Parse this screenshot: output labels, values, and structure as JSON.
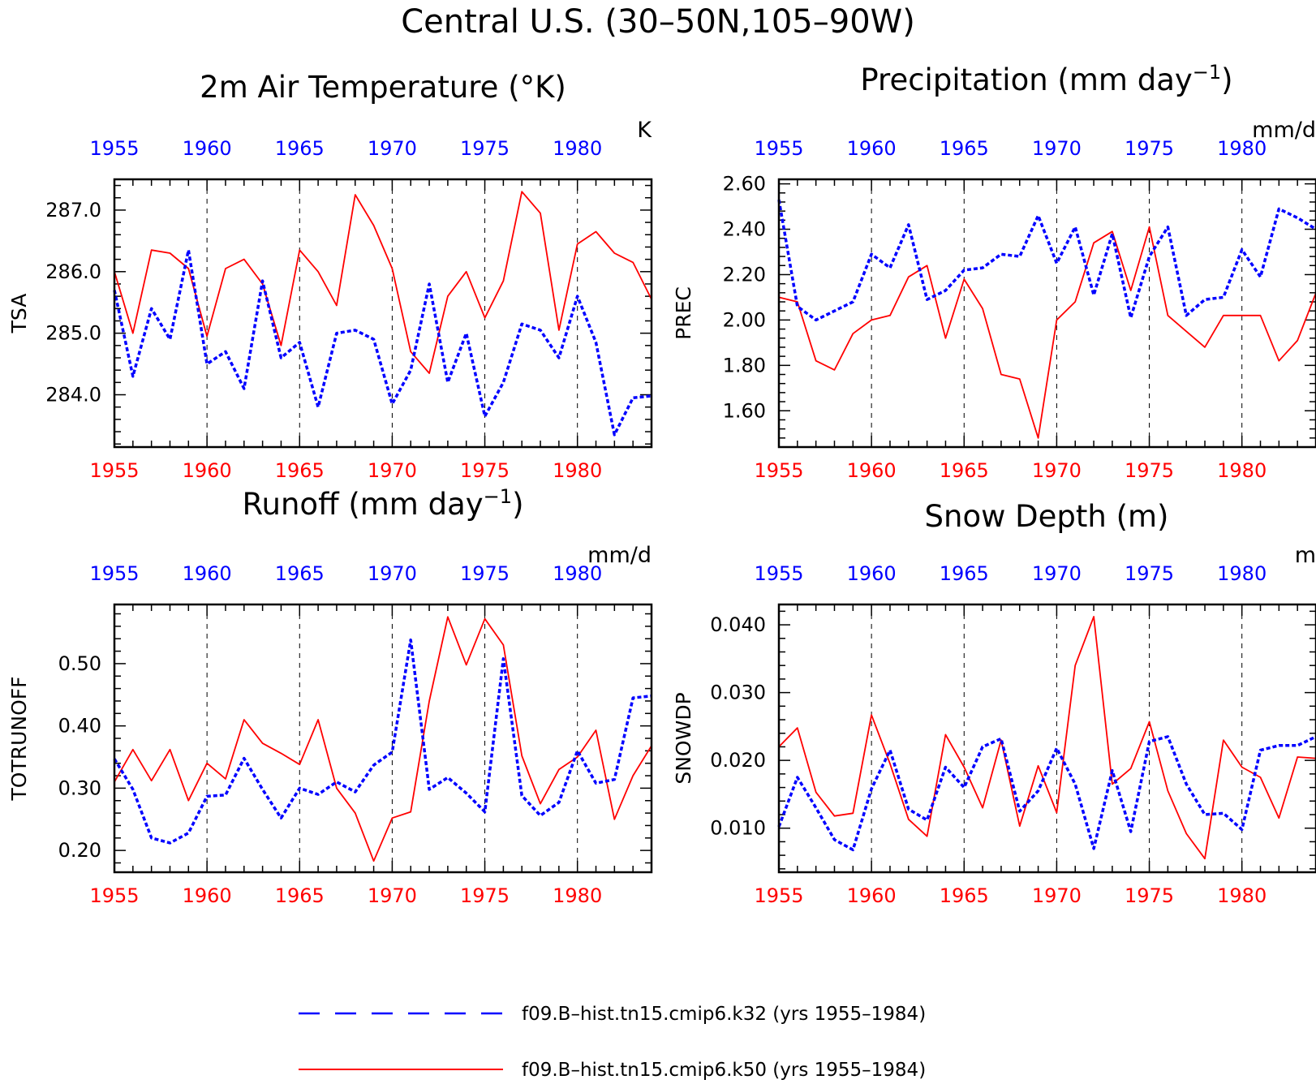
{
  "title": "Central U.S. (30–50N,105–90W)",
  "colors": {
    "k32": "#0000ff",
    "k50": "#ff0000",
    "axis": "#000000",
    "grid": "#000000"
  },
  "legend": [
    {
      "label": "f09.B–hist.tn15.cmip6.k32 (yrs 1955–1984)",
      "color": "#0000ff",
      "style": "dashed"
    },
    {
      "label": "f09.B–hist.tn15.cmip6.k50 (yrs 1955–1984)",
      "color": "#ff0000",
      "style": "solid"
    }
  ],
  "chart_data": [
    {
      "type": "line",
      "title": "2m Air Temperature (°K)",
      "units": "K",
      "ylabel": "TSA",
      "xlim": [
        1955,
        1984
      ],
      "ylim": [
        283.15,
        287.5
      ],
      "yticks": [
        284.0,
        285.0,
        286.0,
        287.0
      ],
      "ytick_labels": [
        "284.0",
        "285.0",
        "286.0",
        "287.0"
      ],
      "xticks": [
        1955,
        1960,
        1965,
        1970,
        1975,
        1980
      ],
      "xtick_labels": [
        "1955",
        "1960",
        "1965",
        "1970",
        "1975",
        "1980"
      ],
      "x": [
        1955,
        1956,
        1957,
        1958,
        1959,
        1960,
        1961,
        1962,
        1963,
        1964,
        1965,
        1966,
        1967,
        1968,
        1969,
        1970,
        1971,
        1972,
        1973,
        1974,
        1975,
        1976,
        1977,
        1978,
        1979,
        1980,
        1981,
        1982,
        1983,
        1984
      ],
      "series": [
        {
          "name": "f09.B–hist.tn15.cmip6.k32",
          "style": "dashed",
          "values": [
            285.7,
            284.3,
            285.4,
            284.9,
            286.35,
            284.5,
            284.7,
            284.1,
            285.85,
            284.6,
            284.85,
            283.8,
            285.0,
            285.05,
            284.9,
            283.85,
            284.4,
            285.8,
            284.2,
            285.0,
            283.65,
            284.2,
            285.15,
            285.05,
            284.6,
            285.6,
            284.85,
            283.35,
            283.95,
            283.98
          ]
        },
        {
          "name": "f09.B–hist.tn15.cmip6.k50",
          "style": "solid",
          "values": [
            286.0,
            285.0,
            286.35,
            286.3,
            286.05,
            284.95,
            286.05,
            286.2,
            285.8,
            284.8,
            286.35,
            286.0,
            285.45,
            287.25,
            286.75,
            286.05,
            284.7,
            284.35,
            285.6,
            286.0,
            285.25,
            285.85,
            287.3,
            286.95,
            285.05,
            286.45,
            286.65,
            286.3,
            286.15,
            285.55
          ]
        }
      ]
    },
    {
      "type": "line",
      "title": "Precipitation (mm day⁻¹)",
      "units": "mm/d",
      "ylabel": "PREC",
      "xlim": [
        1955,
        1984
      ],
      "ylim": [
        1.44,
        2.62
      ],
      "yticks": [
        1.6,
        1.8,
        2.0,
        2.2,
        2.4,
        2.6
      ],
      "ytick_labels": [
        "1.60",
        "1.80",
        "2.00",
        "2.20",
        "2.40",
        "2.60"
      ],
      "xticks": [
        1955,
        1960,
        1965,
        1970,
        1975,
        1980
      ],
      "xtick_labels": [
        "1955",
        "1960",
        "1965",
        "1970",
        "1975",
        "1980"
      ],
      "x": [
        1955,
        1956,
        1957,
        1958,
        1959,
        1960,
        1961,
        1962,
        1963,
        1964,
        1965,
        1966,
        1967,
        1968,
        1969,
        1970,
        1971,
        1972,
        1973,
        1974,
        1975,
        1976,
        1977,
        1978,
        1979,
        1980,
        1981,
        1982,
        1983,
        1984
      ],
      "series": [
        {
          "name": "f09.B–hist.tn15.cmip6.k32",
          "style": "dashed",
          "values": [
            2.53,
            2.06,
            2.0,
            2.04,
            2.08,
            2.29,
            2.23,
            2.42,
            2.09,
            2.13,
            2.22,
            2.23,
            2.29,
            2.28,
            2.46,
            2.25,
            2.41,
            2.11,
            2.38,
            2.01,
            2.28,
            2.41,
            2.02,
            2.09,
            2.1,
            2.31,
            2.19,
            2.49,
            2.45,
            2.4
          ]
        },
        {
          "name": "f09.B–hist.tn15.cmip6.k50",
          "style": "solid",
          "values": [
            2.1,
            2.08,
            1.82,
            1.78,
            1.94,
            2.0,
            2.02,
            2.19,
            2.24,
            1.92,
            2.18,
            2.05,
            1.76,
            1.74,
            1.48,
            2.0,
            2.08,
            2.34,
            2.39,
            2.13,
            2.41,
            2.02,
            1.95,
            1.88,
            2.02,
            2.02,
            2.02,
            1.82,
            1.91,
            2.12
          ]
        }
      ]
    },
    {
      "type": "line",
      "title": "Runoff (mm day⁻¹)",
      "units": "mm/d",
      "ylabel": "TOTRUNOFF",
      "xlim": [
        1955,
        1984
      ],
      "ylim": [
        0.165,
        0.595
      ],
      "yticks": [
        0.2,
        0.3,
        0.4,
        0.5
      ],
      "ytick_labels": [
        "0.20",
        "0.30",
        "0.40",
        "0.50"
      ],
      "xticks": [
        1955,
        1960,
        1965,
        1970,
        1975,
        1980
      ],
      "xtick_labels": [
        "1955",
        "1960",
        "1965",
        "1970",
        "1975",
        "1980"
      ],
      "x": [
        1955,
        1956,
        1957,
        1958,
        1959,
        1960,
        1961,
        1962,
        1963,
        1964,
        1965,
        1966,
        1967,
        1968,
        1969,
        1970,
        1971,
        1972,
        1973,
        1974,
        1975,
        1976,
        1977,
        1978,
        1979,
        1980,
        1981,
        1982,
        1983,
        1984
      ],
      "series": [
        {
          "name": "f09.B–hist.tn15.cmip6.k32",
          "style": "dashed",
          "values": [
            0.347,
            0.298,
            0.22,
            0.212,
            0.228,
            0.287,
            0.289,
            0.348,
            0.298,
            0.252,
            0.3,
            0.29,
            0.31,
            0.294,
            0.337,
            0.358,
            0.538,
            0.298,
            0.317,
            0.292,
            0.262,
            0.508,
            0.288,
            0.256,
            0.277,
            0.36,
            0.308,
            0.314,
            0.445,
            0.448
          ]
        },
        {
          "name": "f09.B–hist.tn15.cmip6.k50",
          "style": "solid",
          "values": [
            0.31,
            0.362,
            0.312,
            0.362,
            0.28,
            0.34,
            0.315,
            0.41,
            0.372,
            0.356,
            0.338,
            0.41,
            0.3,
            0.26,
            0.183,
            0.252,
            0.262,
            0.44,
            0.575,
            0.498,
            0.572,
            0.53,
            0.352,
            0.275,
            0.33,
            0.35,
            0.393,
            0.25,
            0.32,
            0.368
          ]
        }
      ]
    },
    {
      "type": "line",
      "title": "Snow Depth (m)",
      "units": "m",
      "ylabel": "SNOWDP",
      "xlim": [
        1955,
        1984
      ],
      "ylim": [
        0.0035,
        0.043
      ],
      "yticks": [
        0.01,
        0.02,
        0.03,
        0.04
      ],
      "ytick_labels": [
        "0.010",
        "0.020",
        "0.030",
        "0.040"
      ],
      "xticks": [
        1955,
        1960,
        1965,
        1970,
        1975,
        1980
      ],
      "xtick_labels": [
        "1955",
        "1960",
        "1965",
        "1970",
        "1975",
        "1980"
      ],
      "x": [
        1955,
        1956,
        1957,
        1958,
        1959,
        1960,
        1961,
        1962,
        1963,
        1964,
        1965,
        1966,
        1967,
        1968,
        1969,
        1970,
        1971,
        1972,
        1973,
        1974,
        1975,
        1976,
        1977,
        1978,
        1979,
        1980,
        1981,
        1982,
        1983,
        1984
      ],
      "series": [
        {
          "name": "f09.B–hist.tn15.cmip6.k32",
          "style": "dashed",
          "values": [
            0.0102,
            0.0175,
            0.013,
            0.0083,
            0.0068,
            0.0158,
            0.0215,
            0.0128,
            0.0112,
            0.019,
            0.016,
            0.022,
            0.0232,
            0.0125,
            0.0155,
            0.0218,
            0.0165,
            0.007,
            0.0185,
            0.0095,
            0.0228,
            0.0235,
            0.0165,
            0.012,
            0.0122,
            0.0098,
            0.0215,
            0.0222,
            0.0222,
            0.0235
          ]
        },
        {
          "name": "f09.B–hist.tn15.cmip6.k50",
          "style": "solid",
          "values": [
            0.022,
            0.0248,
            0.0153,
            0.0118,
            0.0122,
            0.0267,
            0.0195,
            0.0113,
            0.0088,
            0.0238,
            0.019,
            0.013,
            0.023,
            0.0103,
            0.0192,
            0.0123,
            0.034,
            0.0412,
            0.0165,
            0.0188,
            0.0257,
            0.0155,
            0.0092,
            0.0055,
            0.023,
            0.019,
            0.0175,
            0.0115,
            0.0205,
            0.0203
          ]
        }
      ]
    }
  ]
}
